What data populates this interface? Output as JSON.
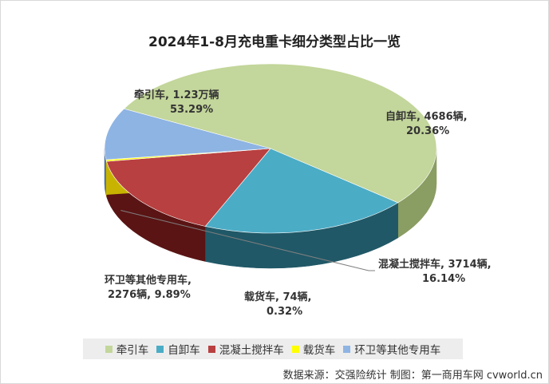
{
  "chart_data": {
    "type": "pie",
    "title": "2024年1-8月充电重卡细分类型占比一览",
    "slices": [
      {
        "name": "牵引车",
        "value_text": "1.23万辆",
        "percent": 53.29,
        "percent_text": "53.29%",
        "color": "#c3d69b",
        "side_color": "#8a9d63"
      },
      {
        "name": "自卸车",
        "value_text": "4686辆",
        "percent": 20.36,
        "percent_text": "20.36%",
        "color": "#4bacc6",
        "side_color": "#205867"
      },
      {
        "name": "混凝土搅拌车",
        "value_text": "3714辆",
        "percent": 16.14,
        "percent_text": "16.14%",
        "color": "#b84040",
        "side_color": "#5a1414"
      },
      {
        "name": "载货车",
        "value_text": "74辆",
        "percent": 0.32,
        "percent_text": "0.32%",
        "color": "#ffff00",
        "side_color": "#c8b400"
      },
      {
        "name": "环卫等其他专用车",
        "value_text": "2276辆",
        "percent": 9.89,
        "percent_text": "9.89%",
        "color": "#8eb4e3",
        "side_color": "#4f6f96"
      }
    ],
    "legend_position": "bottom"
  },
  "labels": {
    "tractor_line1": "牵引车, 1.23万辆",
    "tractor_line2": "53.29%",
    "dump_line1": "自卸车, 4686辆,",
    "dump_line2": "20.36%",
    "mixer_line1": "混凝土搅拌车, 3714辆,",
    "mixer_line2": "16.14%",
    "cargo_line1": "载货车, 74辆,",
    "cargo_line2": "0.32%",
    "special_line1": "环卫等其他专用车,",
    "special_line2": "2276辆, 9.89%"
  },
  "source": "数据来源：交强险统计  制图：第一商用车网 cvworld.cn"
}
